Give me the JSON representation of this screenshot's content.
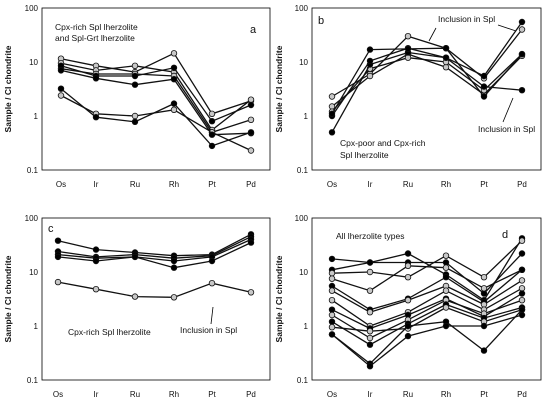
{
  "chart_data": [
    {
      "type": "line",
      "panel_label": "a",
      "annotation": [
        "Cpx-rich Spl lherzolite",
        "and Spl-Grt lherzolite"
      ],
      "ylabel": "Sample / CI chondrite",
      "categories": [
        "Os",
        "Ir",
        "Ru",
        "Rh",
        "Pt",
        "Pd"
      ],
      "ylim": [
        0.1,
        100
      ],
      "yscale": "log",
      "yticks": [
        "0.1",
        "1",
        "10",
        "100"
      ],
      "series": [
        {
          "marker": "open",
          "values": [
            11.5,
            8.5,
            6.5,
            14.5,
            1.1,
            1.9
          ]
        },
        {
          "marker": "open",
          "values": [
            9.5,
            7.0,
            8.5,
            6.5,
            0.55,
            2.0
          ]
        },
        {
          "marker": "open",
          "values": [
            7.5,
            6.0,
            6.0,
            5.5,
            0.5,
            0.85
          ]
        },
        {
          "marker": "open",
          "values": [
            2.4,
            1.1,
            1.0,
            1.3,
            0.5,
            0.23
          ]
        },
        {
          "marker": "filled",
          "values": [
            8.5,
            5.5,
            5.5,
            7.8,
            0.8,
            1.6
          ]
        },
        {
          "marker": "filled",
          "values": [
            7.0,
            5.0,
            3.8,
            4.8,
            0.45,
            0.48
          ]
        },
        {
          "marker": "filled",
          "values": [
            3.2,
            0.95,
            0.78,
            1.7,
            0.28,
            0.5
          ]
        }
      ]
    },
    {
      "type": "line",
      "panel_label": "b",
      "annotation": [
        "Cpx-poor and Cpx-rich",
        "Spl lherzolite"
      ],
      "callouts": [
        "Inclusion in Spl",
        "Inclusion in Spl"
      ],
      "ylabel": "Sample / CI chondrite",
      "categories": [
        "Os",
        "Ir",
        "Ru",
        "Rh",
        "Pt",
        "Pd"
      ],
      "ylim": [
        0.1,
        100
      ],
      "yscale": "log",
      "yticks": [
        "0.1",
        "1",
        "10",
        "100"
      ],
      "series": [
        {
          "marker": "open",
          "values": [
            2.3,
            6.0,
            30.0,
            18.0,
            5.0,
            40.0
          ]
        },
        {
          "marker": "open",
          "values": [
            1.5,
            5.5,
            14.0,
            8.0,
            2.5,
            13.0
          ]
        },
        {
          "marker": "open",
          "values": [
            1.2,
            7.5,
            12.0,
            10.0,
            3.0,
            14.0
          ]
        },
        {
          "marker": "filled",
          "values": [
            0.5,
            9.0,
            15.0,
            12.0,
            5.5,
            55.0
          ]
        },
        {
          "marker": "filled",
          "values": [
            1.0,
            10.5,
            18.0,
            12.0,
            3.5,
            3.0
          ]
        },
        {
          "marker": "filled",
          "values": [
            1.1,
            17.0,
            17.5,
            18.0,
            2.3,
            14.0
          ]
        }
      ]
    },
    {
      "type": "line",
      "panel_label": "c",
      "annotation": [
        "Cpx-rich Spl lherzolite"
      ],
      "callouts": [
        "Inclusion in Spl"
      ],
      "ylabel": "Sample / CI chondrite",
      "categories": [
        "Os",
        "Ir",
        "Ru",
        "Rh",
        "Pt",
        "Pd"
      ],
      "ylim": [
        0.1,
        100
      ],
      "yscale": "log",
      "yticks": [
        "0.1",
        "1",
        "10",
        "100"
      ],
      "series": [
        {
          "marker": "filled",
          "values": [
            38.0,
            26.0,
            23.0,
            20.0,
            21.0,
            50.0
          ]
        },
        {
          "marker": "filled",
          "values": [
            24.0,
            19.0,
            21.0,
            18.0,
            20.0,
            45.0
          ]
        },
        {
          "marker": "filled",
          "values": [
            21.0,
            18.0,
            19.0,
            16.0,
            19.0,
            40.0
          ]
        },
        {
          "marker": "filled",
          "values": [
            19.0,
            16.0,
            19.0,
            12.0,
            16.0,
            35.0
          ]
        },
        {
          "marker": "open",
          "values": [
            6.5,
            4.8,
            3.5,
            3.4,
            6.2,
            4.2
          ]
        }
      ]
    },
    {
      "type": "line",
      "panel_label": "d",
      "annotation": [
        "All lherzolite types"
      ],
      "ylabel": "Sample / CI chondrite",
      "categories": [
        "Os",
        "Ir",
        "Ru",
        "Rh",
        "Pt",
        "Pd"
      ],
      "ylim": [
        0.1,
        100
      ],
      "yscale": "log",
      "yticks": [
        "0.1",
        "1",
        "10",
        "100"
      ],
      "series": [
        {
          "marker": "filled",
          "values": [
            17.5,
            15.0,
            22.0,
            9.0,
            3.0,
            42.0
          ]
        },
        {
          "marker": "filled",
          "values": [
            11.0,
            15.0,
            15.0,
            15.0,
            4.0,
            22.0
          ]
        },
        {
          "marker": "open",
          "values": [
            9.5,
            10.0,
            8.0,
            20.0,
            8.0,
            38.0
          ]
        },
        {
          "marker": "open",
          "values": [
            7.5,
            4.5,
            13.0,
            12.0,
            5.0,
            11.0
          ]
        },
        {
          "marker": "filled",
          "values": [
            5.5,
            2.0,
            3.2,
            8.0,
            2.8,
            11.0
          ]
        },
        {
          "marker": "open",
          "values": [
            4.5,
            1.8,
            3.0,
            5.5,
            2.5,
            7.0
          ]
        },
        {
          "marker": "open",
          "values": [
            3.0,
            1.0,
            1.8,
            4.5,
            2.0,
            5.0
          ]
        },
        {
          "marker": "filled",
          "values": [
            2.0,
            0.9,
            1.6,
            3.2,
            1.5,
            4.0
          ]
        },
        {
          "marker": "open",
          "values": [
            1.6,
            0.6,
            1.3,
            3.0,
            1.7,
            3.0
          ]
        },
        {
          "marker": "filled",
          "values": [
            1.2,
            0.45,
            1.1,
            2.5,
            1.4,
            2.2
          ]
        },
        {
          "marker": "open",
          "values": [
            0.95,
            0.8,
            0.9,
            2.2,
            1.2,
            2.0
          ]
        },
        {
          "marker": "filled",
          "values": [
            0.7,
            0.2,
            1.0,
            1.2,
            0.35,
            2.0
          ]
        },
        {
          "marker": "filled",
          "values": [
            0.7,
            0.18,
            0.65,
            1.0,
            1.0,
            1.6
          ]
        }
      ]
    }
  ]
}
